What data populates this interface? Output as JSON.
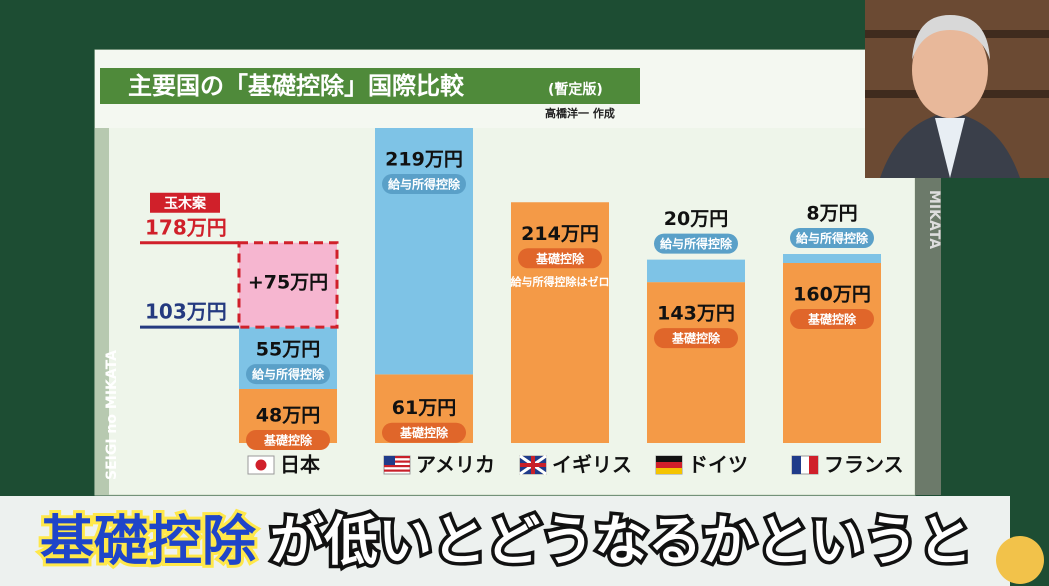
{
  "chart_data": {
    "type": "stacked_bar",
    "title": "主要国の「基礎控除」国際比較",
    "subtitle": "(暫定版)",
    "credit": "高橋洋一 作成",
    "categories": [
      "日本",
      "アメリカ",
      "イギリス",
      "ドイツ",
      "フランス"
    ],
    "series": [
      {
        "name": "基礎控除",
        "color": "#f49a47",
        "values": [
          48,
          61,
          214,
          143,
          160
        ],
        "value_labels": [
          "48万円",
          "61万円",
          "214万円",
          "143万円",
          "160万円"
        ]
      },
      {
        "name": "給与所得控除",
        "color": "#7ec3e6",
        "values": [
          55,
          219,
          0,
          20,
          8
        ],
        "value_labels": [
          "55万円",
          "219万円",
          null,
          "20万円",
          "8万円"
        ]
      },
      {
        "name": "玉木案",
        "color": "#f6b6d0",
        "values": [
          75,
          null,
          null,
          null,
          null
        ],
        "value_labels": [
          "+75万円",
          null,
          null,
          null,
          null
        ]
      }
    ],
    "annotations": [
      {
        "text": "給与所得控除はゼロ",
        "category": 2
      },
      {
        "text": "玉木案",
        "value": 178,
        "value_label": "178万円",
        "color": "#d0202a"
      },
      {
        "value": 103,
        "value_label": "103万円",
        "color": "#243a80"
      }
    ]
  },
  "side_labels": [
    "SEIGI no MIKATA",
    "MIKATA"
  ],
  "caption": [
    "基礎控除",
    "が低いとどうなるかというと"
  ]
}
